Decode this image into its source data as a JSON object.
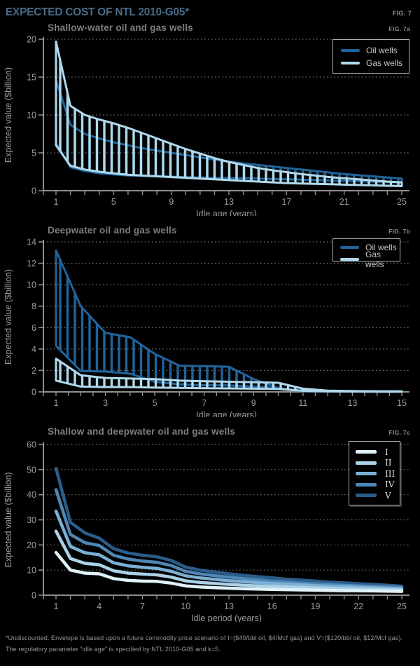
{
  "page": {
    "title": "EXPECTED COST OF NTL 2010-G05*",
    "fig_label": "FIG. 7",
    "background": "#000000",
    "title_color": "#4a6b8a"
  },
  "colors": {
    "oil_wells": "#21639a",
    "gas_wells": "#afd9eb",
    "axis": "#8f8f8f",
    "gridline": "#6e6e6e",
    "tick_text": "#9c9c9c",
    "scenario_I": "#e0f1f8",
    "scenario_II": "#abd1e6",
    "scenario_III": "#7bb0d5",
    "scenario_IV": "#4e86b6",
    "scenario_V": "#2b5d8a"
  },
  "footnote": {
    "line1": "*Undiscounted. Envelope is based upon a future commodity price scenario of I=($40/bbl oil, $4/Mcf gas) and V=($120/bbl oil, $12/Mcf gas).",
    "line2": "The regulatory parameter “idle age” is specified by NTL 2010-G05 and k=5."
  },
  "chart_data": [
    {
      "title": "Shallow-water oil and gas wells",
      "fig_label": "FIG. 7a",
      "type": "area",
      "style": "hatched-envelope",
      "xlabel": "Idle age (years)",
      "ylabel": "Expected value ($billion)",
      "x": [
        1,
        2,
        3,
        4,
        5,
        6,
        7,
        8,
        9,
        10,
        11,
        12,
        13,
        14,
        15,
        16,
        17,
        18,
        19,
        20,
        21,
        22,
        23,
        24,
        25
      ],
      "ylim": [
        0,
        20
      ],
      "y_ticks": [
        0,
        5,
        10,
        15,
        20
      ],
      "x_tick_labels": [
        1,
        5,
        9,
        13,
        17,
        21,
        25
      ],
      "minor_tick_step": 1,
      "grid": "dotted horizontal",
      "legend": {
        "position": "top-right",
        "entries": [
          {
            "label": "Oil wells",
            "color": "#21639a"
          },
          {
            "label": "Gas wells",
            "color": "#afd9eb"
          }
        ]
      },
      "bands": [
        {
          "name": "Oil wells",
          "color": "#21639a",
          "upper": [
            14.6,
            8.7,
            7.5,
            6.9,
            6.4,
            6.0,
            5.6,
            5.3,
            5.0,
            4.7,
            4.4,
            4.1,
            3.85,
            3.6,
            3.4,
            3.2,
            3.0,
            2.8,
            2.6,
            2.4,
            2.2,
            2.05,
            1.9,
            1.75,
            1.6
          ],
          "lower": [
            6.3,
            3.1,
            2.6,
            2.3,
            2.15,
            2.0,
            1.95,
            1.9,
            1.85,
            1.8,
            1.75,
            1.7,
            1.68,
            1.65,
            1.6,
            1.55,
            1.5,
            1.45,
            1.4,
            1.35,
            1.3,
            1.25,
            1.2,
            1.15,
            1.1
          ]
        },
        {
          "name": "Gas wells",
          "color": "#afd9eb",
          "upper": [
            19.7,
            11.2,
            10.0,
            9.4,
            8.9,
            8.3,
            7.6,
            6.9,
            6.2,
            5.5,
            4.9,
            4.3,
            3.8,
            3.4,
            3.0,
            2.7,
            2.45,
            2.2,
            2.0,
            1.8,
            1.65,
            1.5,
            1.35,
            1.2,
            1.1
          ],
          "lower": [
            6.0,
            3.3,
            2.8,
            2.5,
            2.3,
            2.1,
            2.0,
            1.9,
            1.8,
            1.7,
            1.6,
            1.5,
            1.4,
            1.3,
            1.2,
            1.1,
            1.0,
            0.95,
            0.9,
            0.85,
            0.8,
            0.75,
            0.7,
            0.65,
            0.6
          ]
        }
      ]
    },
    {
      "title": "Deepwater oil and gas wells",
      "fig_label": "FIG. 7b",
      "type": "area",
      "style": "hatched-envelope",
      "xlabel": "Idle age (years)",
      "ylabel": "Expected value ($billion)",
      "x": [
        1,
        2,
        3,
        4,
        5,
        6,
        7,
        8,
        9,
        10,
        11,
        12,
        13,
        14,
        15
      ],
      "ylim": [
        0,
        14
      ],
      "y_ticks": [
        0,
        2,
        4,
        6,
        8,
        10,
        12,
        14
      ],
      "x_tick_labels": [
        1,
        3,
        5,
        7,
        9,
        11,
        13,
        15
      ],
      "minor_tick_step": 0.5,
      "grid": "dotted horizontal",
      "legend": {
        "position": "top-right",
        "entries": [
          {
            "label": "Oil wells",
            "color": "#21639a"
          },
          {
            "label": "Gas wells",
            "color": "#afd9eb"
          }
        ]
      },
      "bands": [
        {
          "name": "Oil wells",
          "color": "#21639a",
          "upper": [
            13.2,
            8.0,
            5.5,
            5.1,
            3.55,
            2.45,
            2.4,
            2.35,
            1.2,
            0.35,
            0.1,
            0.07,
            0.06,
            0.05,
            0.05
          ],
          "lower": [
            4.3,
            1.95,
            1.9,
            1.7,
            0.95,
            0.7,
            0.62,
            0.6,
            0.5,
            0.35,
            0.05,
            0.04,
            0.03,
            0.03,
            0.03
          ]
        },
        {
          "name": "Gas wells",
          "color": "#afd9eb",
          "upper": [
            3.1,
            1.55,
            1.3,
            1.25,
            1.2,
            1.05,
            1.0,
            0.95,
            0.9,
            0.85,
            0.3,
            0.12,
            0.08,
            0.06,
            0.05
          ],
          "lower": [
            1.05,
            0.5,
            0.45,
            0.45,
            0.4,
            0.38,
            0.35,
            0.33,
            0.3,
            0.27,
            0.1,
            0.05,
            0.03,
            0.02,
            0.02
          ]
        }
      ]
    },
    {
      "title": "Shallow and deepwater oil and gas wells",
      "fig_label": "FIG. 7c",
      "type": "line",
      "xlabel": "Idle period (years)",
      "ylabel": "Expected value ($billion)",
      "x": [
        1,
        2,
        3,
        4,
        5,
        6,
        7,
        8,
        9,
        10,
        11,
        12,
        13,
        14,
        15,
        16,
        17,
        18,
        19,
        20,
        21,
        22,
        23,
        24,
        25
      ],
      "ylim": [
        0,
        60
      ],
      "y_ticks": [
        0,
        10,
        20,
        30,
        40,
        50,
        60
      ],
      "x_tick_labels": [
        1,
        4,
        7,
        10,
        13,
        16,
        19,
        22,
        25
      ],
      "minor_tick_step": 1,
      "grid": "dotted horizontal",
      "legend": {
        "position": "top-right",
        "entries": [
          {
            "label": "I",
            "color": "#e0f1f8"
          },
          {
            "label": "II",
            "color": "#abd1e6"
          },
          {
            "label": "III",
            "color": "#7bb0d5"
          },
          {
            "label": "IV",
            "color": "#4e86b6"
          },
          {
            "label": "V",
            "color": "#2b5d8a"
          }
        ]
      },
      "series": [
        {
          "name": "V",
          "color": "#2b5d8a",
          "values": [
            50.5,
            29.0,
            24.8,
            22.7,
            18.5,
            16.8,
            15.9,
            15.3,
            13.8,
            11.2,
            10.0,
            9.2,
            8.5,
            7.9,
            7.4,
            6.9,
            6.4,
            6.0,
            5.6,
            5.2,
            4.9,
            4.6,
            4.3,
            4.0,
            3.6
          ]
        },
        {
          "name": "IV",
          "color": "#4e86b6",
          "values": [
            42.0,
            24.2,
            20.9,
            19.8,
            15.9,
            14.4,
            13.6,
            13.1,
            11.8,
            9.5,
            8.5,
            7.8,
            7.2,
            6.6,
            6.1,
            5.6,
            5.2,
            4.8,
            4.5,
            4.2,
            3.9,
            3.7,
            3.5,
            3.3,
            3.1
          ]
        },
        {
          "name": "III",
          "color": "#7bb0d5",
          "values": [
            33.5,
            19.4,
            16.9,
            16.1,
            12.9,
            11.7,
            11.1,
            10.7,
            9.5,
            7.7,
            6.9,
            6.3,
            5.8,
            5.4,
            5.0,
            4.7,
            4.4,
            4.1,
            3.8,
            3.6,
            3.4,
            3.2,
            3.0,
            2.8,
            2.6
          ]
        },
        {
          "name": "II",
          "color": "#abd1e6",
          "values": [
            25.5,
            14.6,
            12.7,
            12.1,
            9.7,
            8.8,
            8.4,
            8.1,
            7.2,
            5.7,
            5.1,
            4.7,
            4.3,
            4.0,
            3.7,
            3.5,
            3.3,
            3.1,
            2.9,
            2.75,
            2.6,
            2.45,
            2.3,
            2.2,
            2.1
          ]
        },
        {
          "name": "I",
          "color": "#e0f1f8",
          "values": [
            17.0,
            10.0,
            8.8,
            8.5,
            6.6,
            5.9,
            5.6,
            5.5,
            4.8,
            3.7,
            3.3,
            3.0,
            2.8,
            2.6,
            2.45,
            2.3,
            2.2,
            2.1,
            2.0,
            1.9,
            1.8,
            1.75,
            1.7,
            1.6,
            1.5
          ]
        }
      ]
    }
  ]
}
